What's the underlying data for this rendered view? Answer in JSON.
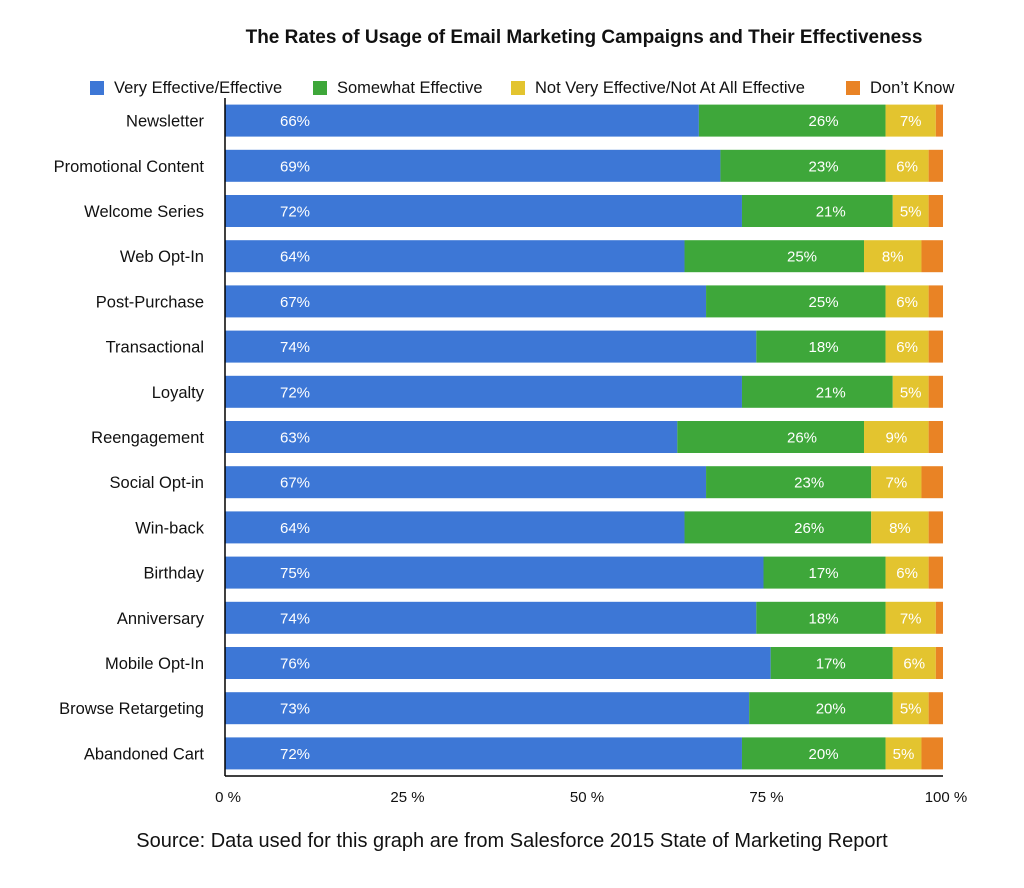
{
  "chart_data": {
    "type": "bar",
    "orientation": "horizontal",
    "stacked": true,
    "title": "The Rates of Usage of Email Marketing Campaigns and Their Effectiveness",
    "categories": [
      "Newsletter",
      "Promotional Content",
      "Welcome Series",
      "Web Opt-In",
      "Post-Purchase",
      "Transactional",
      "Loyalty",
      "Reengagement",
      "Social Opt-in",
      "Win-back",
      "Birthday",
      "Anniversary",
      "Mobile Opt-In",
      "Browse Retargeting",
      "Abandoned Cart"
    ],
    "series": [
      {
        "name": "Very Effective/Effective",
        "color": "#3d77d6",
        "values": [
          66,
          69,
          72,
          64,
          67,
          74,
          72,
          63,
          67,
          64,
          75,
          74,
          76,
          73,
          72
        ]
      },
      {
        "name": "Somewhat Effective",
        "color": "#3ea73a",
        "values": [
          26,
          23,
          21,
          25,
          25,
          18,
          21,
          26,
          23,
          26,
          17,
          18,
          17,
          20,
          20
        ]
      },
      {
        "name": "Not Very Effective/Not At All Effective",
        "color": "#e3c42f",
        "values": [
          7,
          6,
          5,
          8,
          6,
          6,
          5,
          9,
          7,
          8,
          6,
          7,
          6,
          5,
          5
        ]
      },
      {
        "name": "Don’t Know",
        "color": "#e98325",
        "values": [
          1,
          2,
          2,
          3,
          2,
          2,
          2,
          2,
          3,
          2,
          2,
          1,
          1,
          2,
          3
        ]
      }
    ],
    "data_labels": [
      [
        "66%",
        "69%",
        "72%",
        "64%",
        "67%",
        "74%",
        "72%",
        "63%",
        "67%",
        "64%",
        "75%",
        "74%",
        "76%",
        "73%",
        "72%"
      ],
      [
        "26%",
        "23%",
        "21%",
        "25%",
        "25%",
        "18%",
        "21%",
        "26%",
        "23%",
        "26%",
        "17%",
        "18%",
        "17%",
        "20%",
        "20%"
      ],
      [
        "7%",
        "6%",
        "5%",
        "8%",
        "6%",
        "6%",
        "5%",
        "9%",
        "7%",
        "8%",
        "6%",
        "7%",
        "6%",
        "5%",
        "5%"
      ],
      [
        null,
        null,
        null,
        null,
        null,
        null,
        null,
        null,
        null,
        null,
        null,
        null,
        null,
        null,
        null
      ]
    ],
    "xlim": [
      0,
      100
    ],
    "x_ticks": [
      0,
      25,
      50,
      75,
      100
    ],
    "x_tick_labels": [
      "0 %",
      "25 %",
      "50 %",
      "75 %",
      "100 %"
    ],
    "grid": false,
    "legend_position": "top"
  },
  "source_text": "Source: Data used for this graph are from Salesforce 2015 State of Marketing Report"
}
